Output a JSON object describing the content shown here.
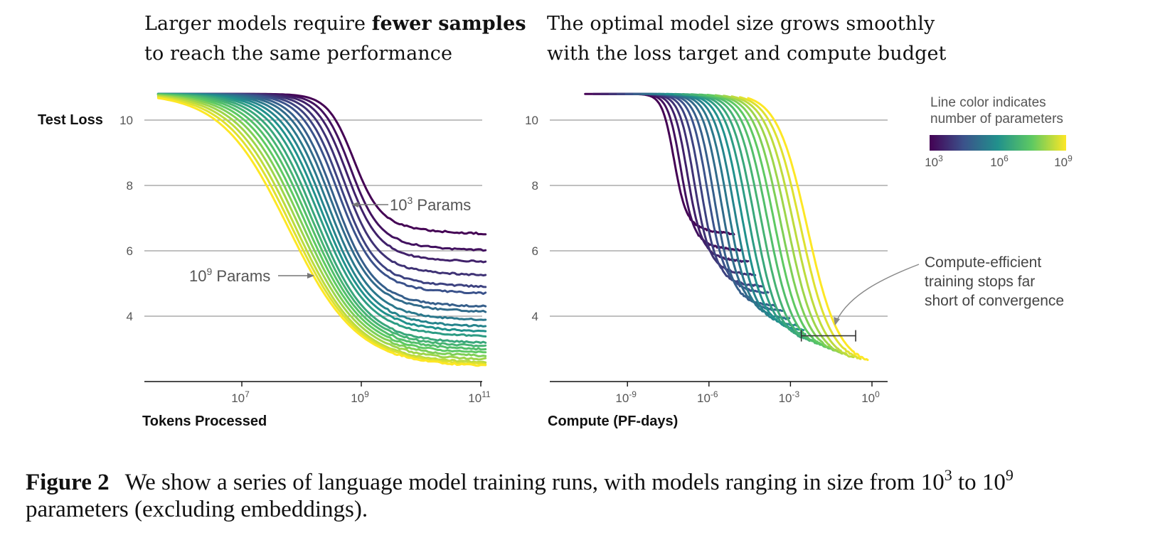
{
  "titles": {
    "left_line1_pre": "Larger models require ",
    "left_line1_bold": "fewer samples",
    "left_line2": "to reach the same performance",
    "right_line1": "The optimal model size grows smoothly",
    "right_line2": "with the loss target and compute budget"
  },
  "legend": {
    "title_line1": "Line color indicates",
    "title_line2": "number of parameters",
    "ticks": [
      {
        "base": "10",
        "exp": "3"
      },
      {
        "base": "10",
        "exp": "6"
      },
      {
        "base": "10",
        "exp": "9"
      }
    ],
    "colormap": "viridis",
    "colormap_stops": [
      "#440154",
      "#3b528b",
      "#21918c",
      "#5ec962",
      "#fde725"
    ]
  },
  "annotations": {
    "left_small_model": {
      "base": "10",
      "exp": "3",
      "text": " Params"
    },
    "left_large_model": {
      "base": "10",
      "exp": "9",
      "text": " Params"
    },
    "right_note": [
      "Compute-efficient",
      "training stops far",
      "short of convergence"
    ]
  },
  "caption": {
    "label": "Figure 2",
    "text_pre": "We show a series of language model training runs, with models ranging in size from 10",
    "exp1": "3",
    "text_mid": " to 10",
    "exp2": "9",
    "text_line2": "parameters (excluding embeddings)."
  },
  "chart_data": [
    {
      "type": "line",
      "title": "Larger models require fewer samples to reach the same performance",
      "xlabel": "Tokens Processed",
      "ylabel": "Test Loss",
      "xscale": "log",
      "xlim_log10": [
        5.6,
        11.25
      ],
      "ylim": [
        2,
        11
      ],
      "yticks": [
        10,
        8,
        6,
        4
      ],
      "xticks": [
        {
          "base": "10",
          "exp": "7",
          "log10": 7
        },
        {
          "base": "10",
          "exp": "9",
          "log10": 9
        },
        {
          "base": "10",
          "exp": "11",
          "log10": 11
        }
      ],
      "grid": "horizontal",
      "series_description": "One curve per model size, log10(params) from 3 to 9; initial loss ~10.8, final loss listed",
      "series": [
        {
          "log10_params": 3.0,
          "final_loss": 6.45
        },
        {
          "log10_params": 3.3,
          "final_loss": 5.95
        },
        {
          "log10_params": 3.6,
          "final_loss": 5.6
        },
        {
          "log10_params": 3.9,
          "final_loss": 5.2
        },
        {
          "log10_params": 4.2,
          "final_loss": 4.85
        },
        {
          "log10_params": 4.5,
          "final_loss": 4.65
        },
        {
          "log10_params": 4.8,
          "final_loss": 4.25
        },
        {
          "log10_params": 5.1,
          "final_loss": 4.1
        },
        {
          "log10_params": 5.4,
          "final_loss": 3.85
        },
        {
          "log10_params": 5.7,
          "final_loss": 3.65
        },
        {
          "log10_params": 6.0,
          "final_loss": 3.5
        },
        {
          "log10_params": 6.3,
          "final_loss": 3.35
        },
        {
          "log10_params": 6.6,
          "final_loss": 3.15
        },
        {
          "log10_params": 6.9,
          "final_loss": 3.05
        },
        {
          "log10_params": 7.2,
          "final_loss": 2.95
        },
        {
          "log10_params": 7.5,
          "final_loss": 2.85
        },
        {
          "log10_params": 7.8,
          "final_loss": 2.75
        },
        {
          "log10_params": 8.1,
          "final_loss": 2.65
        },
        {
          "log10_params": 8.4,
          "final_loss": 2.55
        },
        {
          "log10_params": 8.7,
          "final_loss": 2.5
        },
        {
          "log10_params": 9.0,
          "final_loss": 2.45
        }
      ]
    },
    {
      "type": "line",
      "title": "The optimal model size grows smoothly with the loss target and compute budget",
      "xlabel": "Compute (PF-days)",
      "ylabel": "Test Loss",
      "xscale": "log",
      "xlim_log10": [
        -11.8,
        0.9
      ],
      "ylim": [
        2,
        11
      ],
      "yticks": [
        10,
        8,
        6,
        4
      ],
      "xticks": [
        {
          "base": "10",
          "exp": "-9",
          "log10": -9
        },
        {
          "base": "10",
          "exp": "-6",
          "log10": -6
        },
        {
          "base": "10",
          "exp": "-3",
          "log10": -3
        },
        {
          "base": "10",
          "exp": "0",
          "log10": 0
        }
      ],
      "grid": "horizontal",
      "series_description": "Same runs as left panel plotted vs compute; curves truncated near compute-efficient frontier for large models",
      "bracket_log10_range": [
        -2.6,
        -0.6
      ],
      "bracket_loss": 3.4
    }
  ]
}
